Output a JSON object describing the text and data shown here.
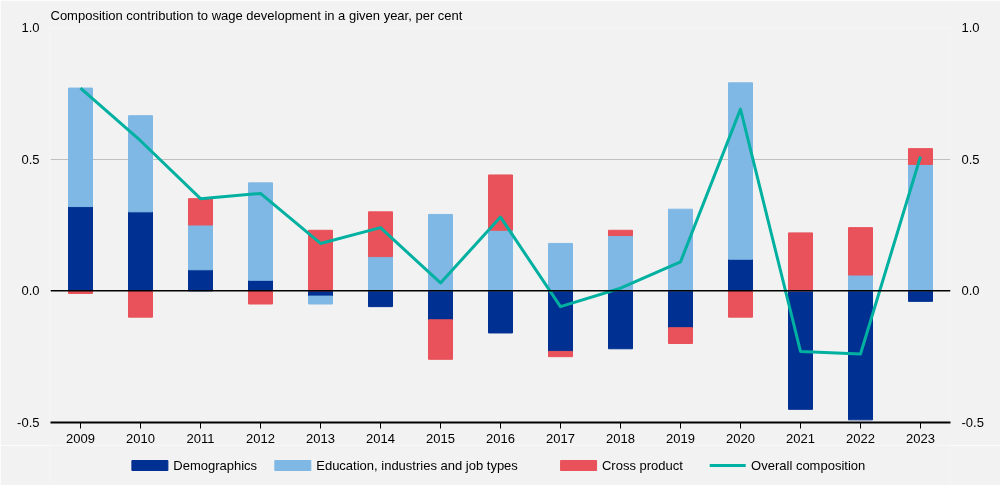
{
  "chart_data": {
    "type": "bar",
    "stacked": true,
    "ylabel": "Composition contribution to wage development in a given year, per cent",
    "categories": [
      "2009",
      "2010",
      "2011",
      "2012",
      "2013",
      "2014",
      "2015",
      "2016",
      "2017",
      "2018",
      "2019",
      "2020",
      "2021",
      "2022",
      "2023"
    ],
    "series": [
      {
        "name": "Demographics",
        "color": "#003092",
        "values": [
          0.32,
          0.3,
          0.08,
          0.04,
          -0.02,
          -0.06,
          -0.11,
          -0.16,
          -0.23,
          -0.22,
          -0.14,
          0.12,
          -0.45,
          -0.49,
          -0.04
        ]
      },
      {
        "name": "Education, industries and job types",
        "color": "#7fb8e5",
        "values": [
          0.45,
          0.365,
          0.17,
          0.37,
          -0.03,
          0.13,
          0.29,
          0.23,
          0.18,
          0.21,
          0.31,
          0.67,
          0.0,
          0.06,
          0.48
        ]
      },
      {
        "name": "Cross product",
        "color": "#e9525a",
        "values": [
          -0.01,
          -0.1,
          0.1,
          -0.05,
          0.23,
          0.17,
          -0.15,
          0.21,
          -0.02,
          0.02,
          -0.06,
          -0.1,
          0.22,
          0.18,
          0.06
        ]
      },
      {
        "name": "Overall composition",
        "type": "line",
        "color": "#00b0a0",
        "values": [
          0.77,
          0.57,
          0.35,
          0.37,
          0.18,
          0.24,
          0.03,
          0.28,
          -0.06,
          0.01,
          0.11,
          0.69,
          -0.23,
          -0.24,
          0.51
        ]
      }
    ],
    "ylim": [
      -0.5,
      1.0
    ],
    "yticks": [
      {
        "value": -0.5,
        "label": "-0.5"
      },
      {
        "value": 0,
        "label": "0.0"
      },
      {
        "value": 0.5,
        "label": "0.5"
      },
      {
        "value": 1.0,
        "label": "1.0"
      }
    ],
    "y2lim": [
      -0.5,
      1.0
    ],
    "y2ticks": [
      {
        "value": -0.5,
        "label": "-0.5"
      },
      {
        "value": 0,
        "label": "0.0"
      },
      {
        "value": 0.5,
        "label": "0.5"
      },
      {
        "value": 1.0,
        "label": "1.0"
      }
    ],
    "ref_lines": [
      {
        "axis": "y",
        "value": 0,
        "color": "#000000"
      }
    ],
    "grid": "y",
    "legend": "bottom",
    "marker": "none",
    "line_style": "solid"
  }
}
